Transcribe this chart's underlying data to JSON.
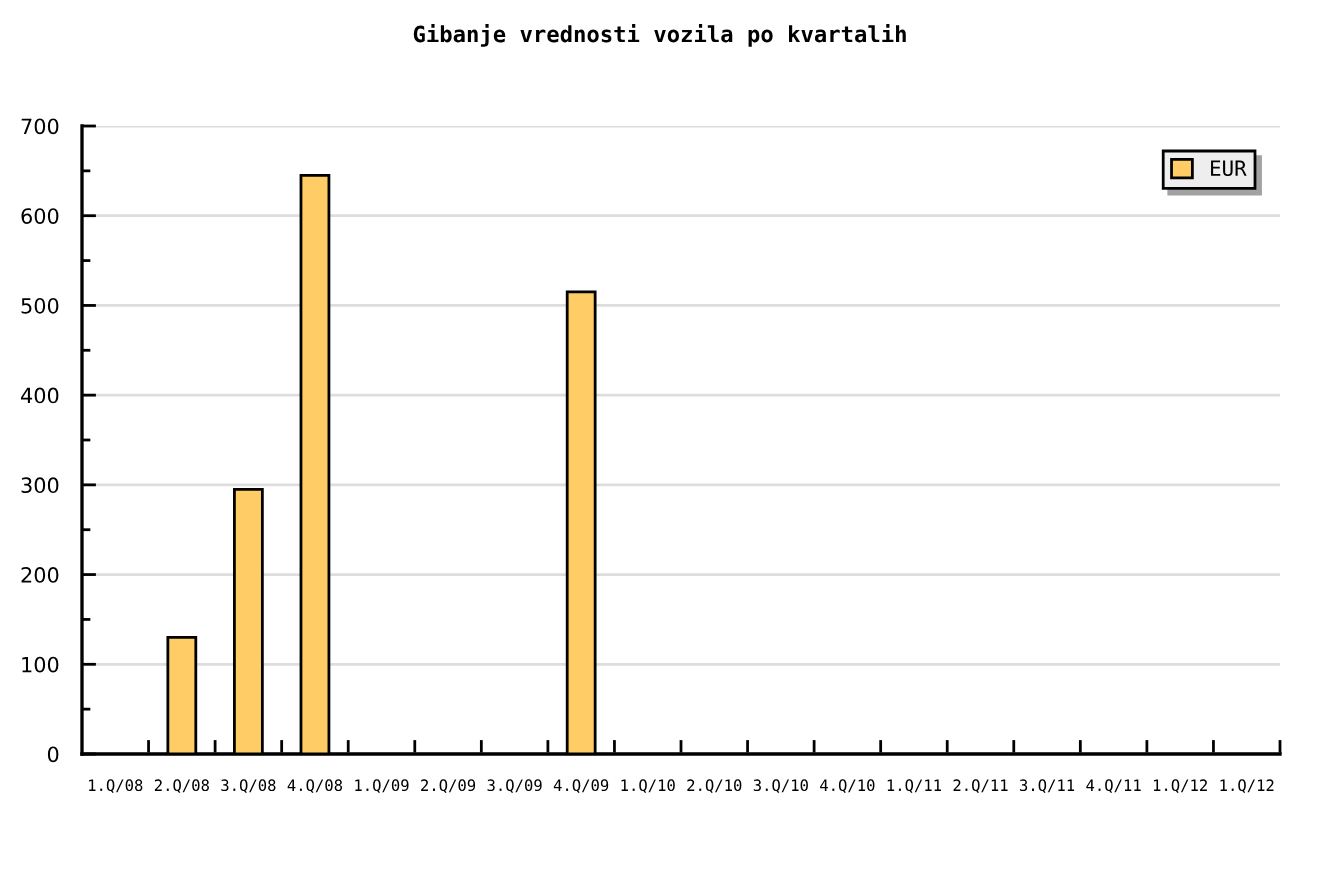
{
  "chart_data": {
    "type": "bar",
    "title": "Gibanje vrednosti vozila po kvartalih",
    "categories": [
      "1.Q/08",
      "2.Q/08",
      "3.Q/08",
      "4.Q/08",
      "1.Q/09",
      "2.Q/09",
      "3.Q/09",
      "4.Q/09",
      "1.Q/10",
      "2.Q/10",
      "3.Q/10",
      "4.Q/10",
      "1.Q/11",
      "2.Q/11",
      "3.Q/11",
      "4.Q/11",
      "1.Q/12",
      "1.Q/12"
    ],
    "series": [
      {
        "name": "EUR",
        "color": "#ffcc66",
        "values": [
          null,
          130,
          295,
          645,
          null,
          null,
          null,
          515,
          null,
          null,
          null,
          null,
          null,
          null,
          null,
          null,
          null,
          null
        ]
      }
    ],
    "ylim": [
      0,
      700
    ],
    "yticks": [
      0,
      100,
      200,
      300,
      400,
      500,
      600,
      700
    ],
    "grid": "y",
    "legend": "top right"
  }
}
